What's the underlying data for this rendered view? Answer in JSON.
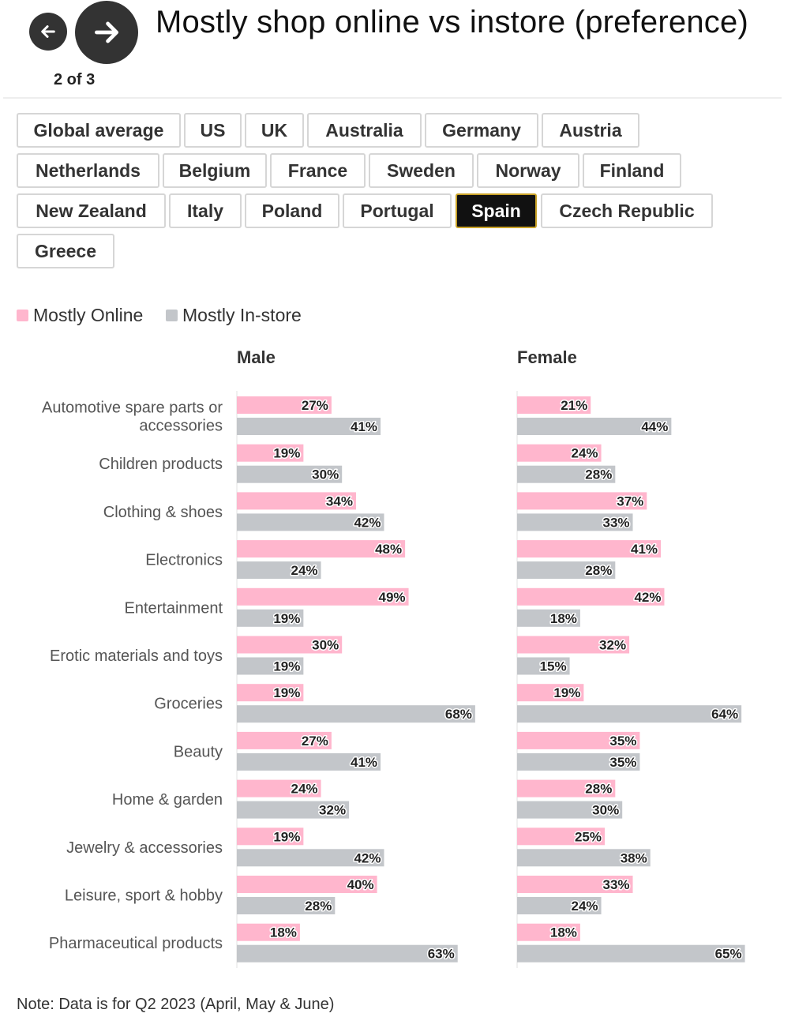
{
  "header": {
    "title": "Mostly shop online vs instore (preference)",
    "counter": "2 of 3",
    "prev_icon": "arrow-left-icon",
    "next_icon": "arrow-right-icon"
  },
  "tabs": {
    "selected": "Spain",
    "rows": [
      [
        "Global average",
        "US",
        "UK",
        "Australia",
        "Germany",
        "Austria"
      ],
      [
        "Netherlands",
        "Belgium",
        "France",
        "Sweden",
        "Norway",
        "Finland"
      ],
      [
        "New Zealand",
        "Italy",
        "Poland",
        "Portugal",
        "Spain",
        "Czech Republic"
      ],
      [
        "Greece"
      ]
    ]
  },
  "legend": {
    "online": "Mostly Online",
    "instore": "Mostly In-store"
  },
  "colors": {
    "online": "#ffb6cd",
    "instore": "#c3c6ca",
    "active_tab_border": "#c9a227"
  },
  "note": "Note: Data is for Q2 2023 (April, May & June)",
  "chart_data": {
    "type": "bar",
    "orientation": "horizontal",
    "categories": [
      "Automotive spare parts or accessories",
      "Children products",
      "Clothing & shoes",
      "Electronics",
      "Entertainment",
      "Erotic materials and toys",
      "Groceries",
      "Beauty",
      "Home & garden",
      "Jewelry & accessories",
      "Leisure, sport & hobby",
      "Pharmaceutical products"
    ],
    "value_suffix": "%",
    "panels": [
      {
        "title": "Male",
        "series": [
          {
            "name": "Mostly Online",
            "values": [
              27,
              19,
              34,
              48,
              49,
              30,
              19,
              27,
              24,
              19,
              40,
              18
            ]
          },
          {
            "name": "Mostly In-store",
            "values": [
              41,
              30,
              42,
              24,
              19,
              19,
              68,
              41,
              32,
              42,
              28,
              63
            ]
          }
        ]
      },
      {
        "title": "Female",
        "series": [
          {
            "name": "Mostly Online",
            "values": [
              21,
              24,
              37,
              41,
              42,
              32,
              19,
              35,
              28,
              25,
              33,
              18
            ]
          },
          {
            "name": "Mostly In-store",
            "values": [
              44,
              28,
              33,
              28,
              18,
              15,
              64,
              35,
              30,
              38,
              24,
              65
            ]
          }
        ]
      }
    ]
  }
}
